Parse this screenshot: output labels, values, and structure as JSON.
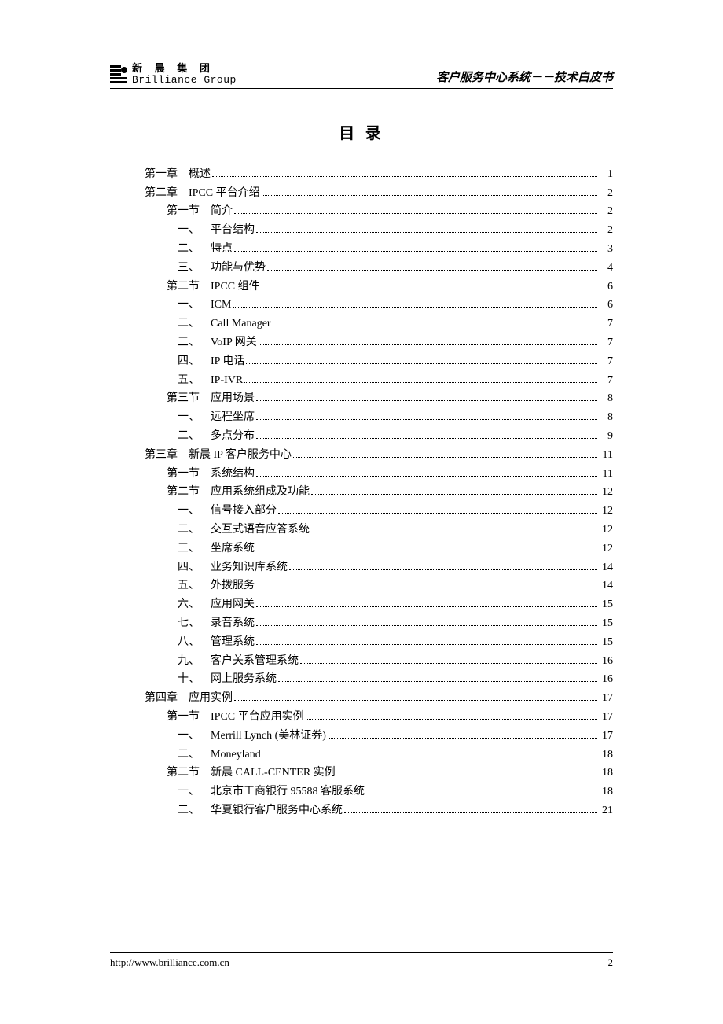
{
  "header": {
    "logo_cn": "新 晨 集 团",
    "logo_en": "Brilliance Group",
    "right_title": "客户服务中心系统－－技术白皮书"
  },
  "toc_title": "目 录",
  "toc": [
    {
      "level": 0,
      "label": "第一章",
      "text": "概述",
      "page": "1"
    },
    {
      "level": 0,
      "label": "第二章",
      "text": "IPCC 平台介绍",
      "page": "2"
    },
    {
      "level": 1,
      "label": "第一节",
      "text": "简介",
      "page": "2"
    },
    {
      "level": 2,
      "label": "一、",
      "text": "平台结构",
      "page": "2"
    },
    {
      "level": 2,
      "label": "二、",
      "text": "特点",
      "page": "3"
    },
    {
      "level": 2,
      "label": "三、",
      "text": "功能与优势",
      "page": "4"
    },
    {
      "level": 1,
      "label": "第二节",
      "text": "IPCC 组件",
      "page": "6"
    },
    {
      "level": 2,
      "label": "一、",
      "text": "ICM",
      "page": "6"
    },
    {
      "level": 2,
      "label": "二、",
      "text": "Call Manager",
      "page": "7"
    },
    {
      "level": 2,
      "label": "三、",
      "text": "VoIP 网关",
      "page": "7"
    },
    {
      "level": 2,
      "label": "四、",
      "text": "IP 电话",
      "page": "7"
    },
    {
      "level": 2,
      "label": "五、",
      "text": "IP-IVR",
      "page": "7"
    },
    {
      "level": 1,
      "label": "第三节",
      "text": "应用场景",
      "page": "8"
    },
    {
      "level": 2,
      "label": "一、",
      "text": "远程坐席",
      "page": "8"
    },
    {
      "level": 2,
      "label": "二、",
      "text": "多点分布",
      "page": "9"
    },
    {
      "level": 0,
      "label": "第三章",
      "text": "新晨 IP 客户服务中心",
      "page": "11"
    },
    {
      "level": 1,
      "label": "第一节",
      "text": "系统结构",
      "page": "11"
    },
    {
      "level": 1,
      "label": "第二节",
      "text": "应用系统组成及功能",
      "page": "12"
    },
    {
      "level": 2,
      "label": "一、",
      "text": "信号接入部分",
      "page": "12"
    },
    {
      "level": 2,
      "label": "二、",
      "text": "交互式语音应答系统",
      "page": "12"
    },
    {
      "level": 2,
      "label": "三、",
      "text": "坐席系统",
      "page": "12"
    },
    {
      "level": 2,
      "label": "四、",
      "text": "业务知识库系统",
      "page": "14"
    },
    {
      "level": 2,
      "label": "五、",
      "text": "外拨服务",
      "page": "14"
    },
    {
      "level": 2,
      "label": "六、",
      "text": "应用网关",
      "page": "15"
    },
    {
      "level": 2,
      "label": "七、",
      "text": "录音系统",
      "page": "15"
    },
    {
      "level": 2,
      "label": "八、",
      "text": "管理系统",
      "page": "15"
    },
    {
      "level": 2,
      "label": "九、",
      "text": "客户关系管理系统",
      "page": "16"
    },
    {
      "level": 2,
      "label": "十、",
      "text": "网上服务系统",
      "page": "16"
    },
    {
      "level": 0,
      "label": "第四章",
      "text": "应用实例",
      "page": "17"
    },
    {
      "level": 1,
      "label": "第一节",
      "text": "IPCC 平台应用实例",
      "page": "17"
    },
    {
      "level": 2,
      "label": "一、",
      "text": "Merrill Lynch (美林证券)",
      "page": "17"
    },
    {
      "level": 2,
      "label": "二、",
      "text": "Moneyland",
      "page": "18"
    },
    {
      "level": 1,
      "label": "第二节",
      "text": "新晨 CALL-CENTER 实例",
      "page": "18"
    },
    {
      "level": 2,
      "label": "一、",
      "text": "北京市工商银行 95588 客服系统",
      "page": "18"
    },
    {
      "level": 2,
      "label": "二、",
      "text": "华夏银行客户服务中心系统",
      "page": "21"
    }
  ],
  "footer": {
    "url": "http://www.brilliance.com.cn",
    "page_number": "2"
  }
}
